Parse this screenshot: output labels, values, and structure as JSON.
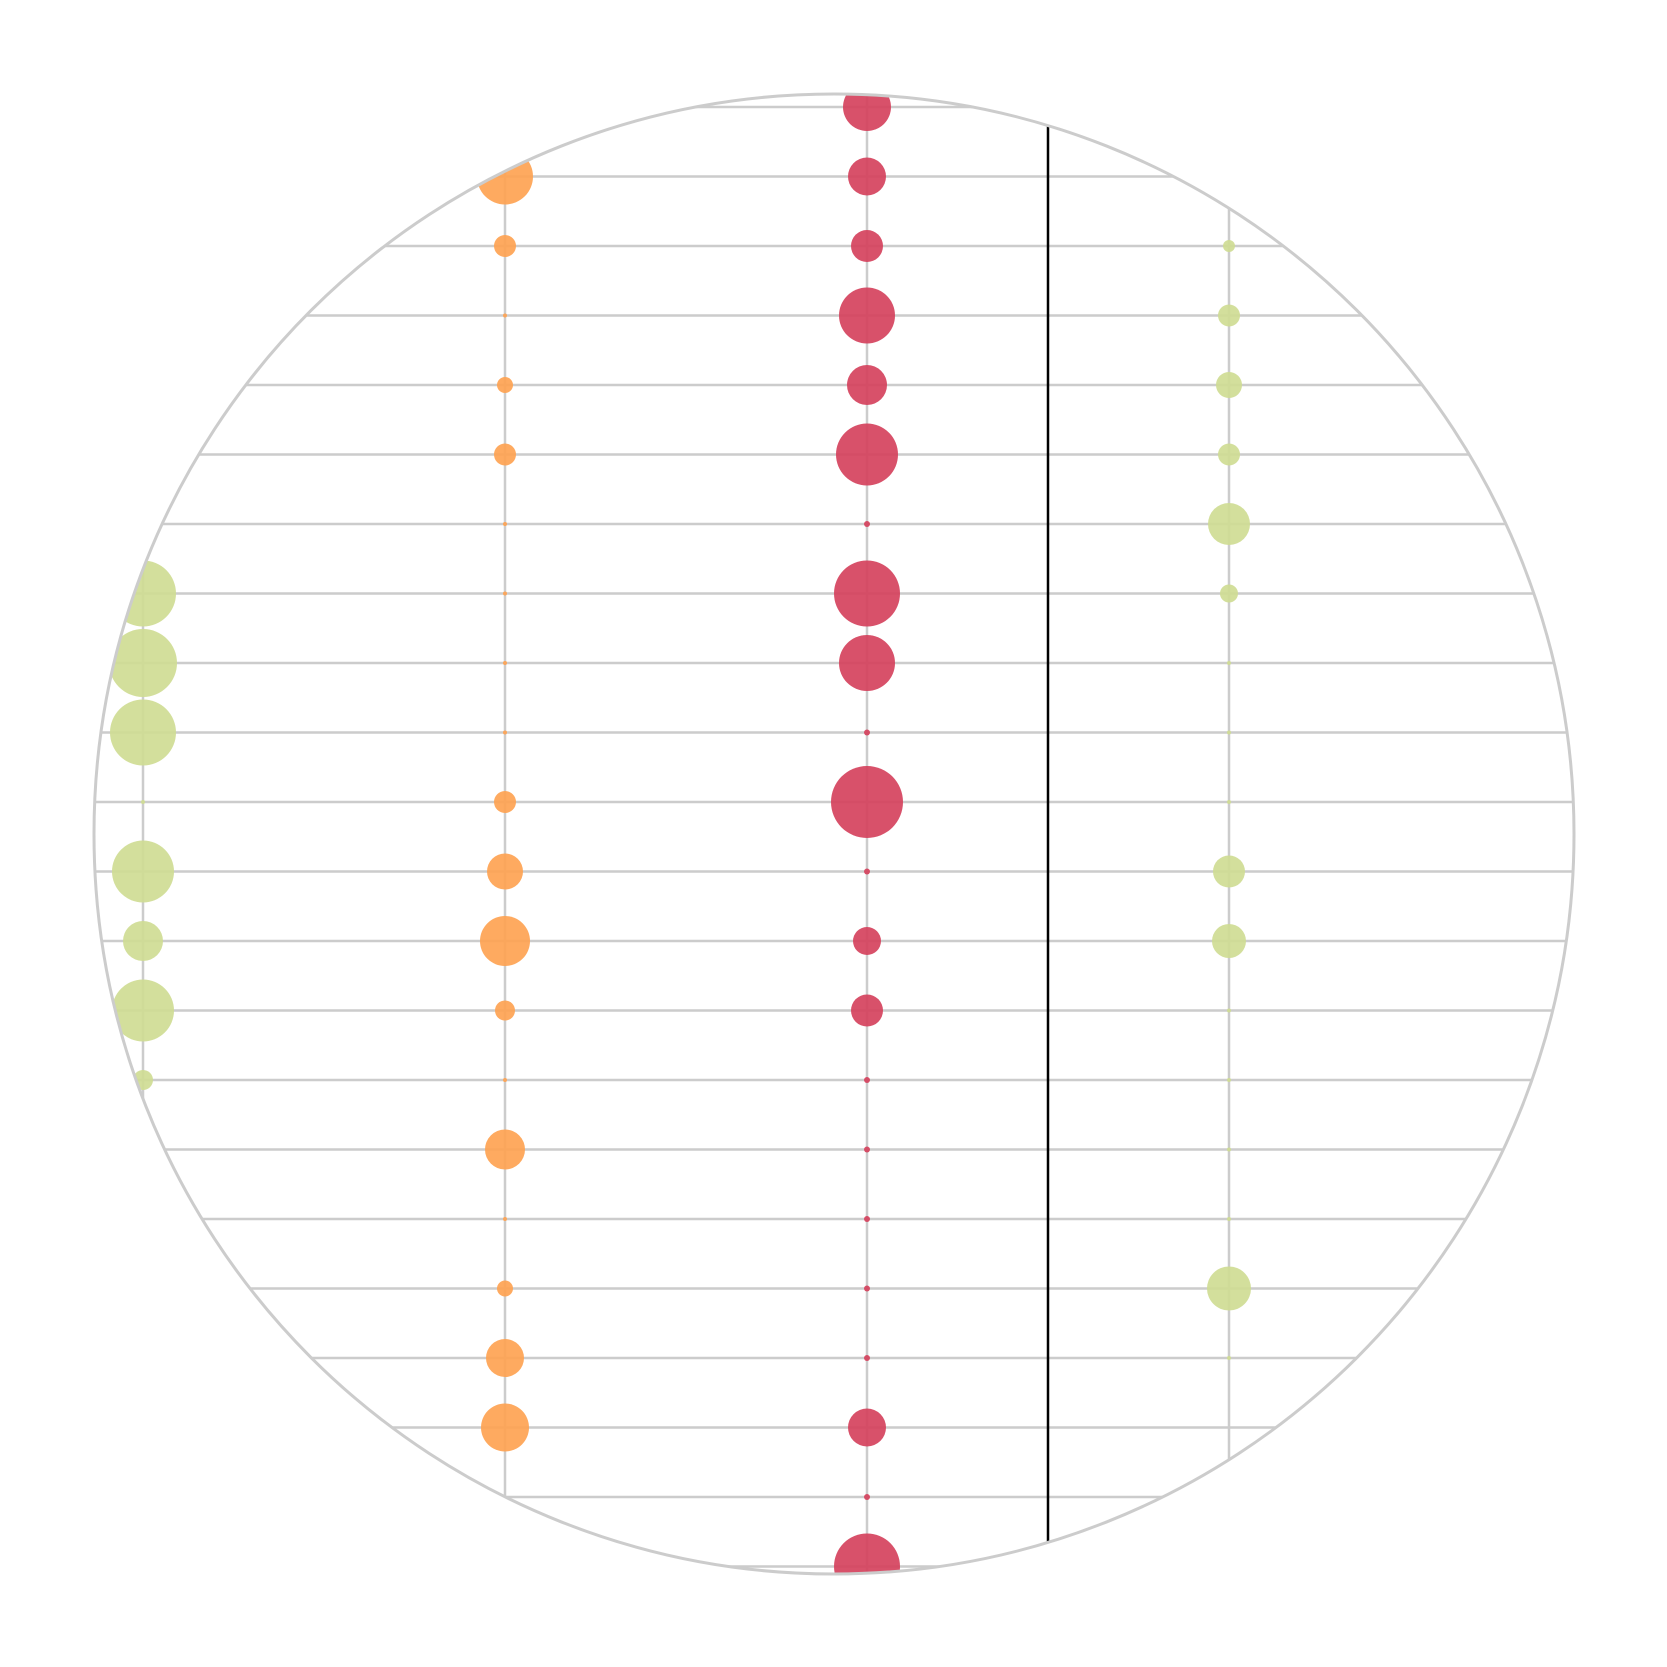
{
  "chart_data": {
    "type": "scatter",
    "title": "",
    "xlabel": "",
    "ylabel": "",
    "grid": true,
    "legend": "none",
    "columns": [
      0,
      1,
      2,
      3
    ],
    "rows": 22,
    "reference_line_x": 2.5,
    "series": [
      {
        "column": 0,
        "color": "#cfdc94",
        "sizes": [
          0,
          0,
          0,
          0,
          0,
          0,
          0,
          33,
          34,
          33,
          2,
          31,
          20,
          31,
          10,
          0,
          0,
          0,
          0,
          0,
          0,
          0
        ]
      },
      {
        "column": 1,
        "color": "#fea352",
        "sizes": [
          0,
          28,
          11,
          2,
          8,
          11,
          2,
          2,
          2,
          2,
          11,
          18,
          25,
          10,
          2,
          20,
          2,
          8,
          19,
          24,
          0,
          0
        ]
      },
      {
        "column": 2,
        "color": "#d5425d",
        "sizes": [
          24,
          19,
          16,
          28,
          20,
          31,
          3,
          33,
          28,
          3,
          36,
          3,
          14,
          16,
          3,
          3,
          3,
          3,
          3,
          19,
          3,
          33
        ]
      },
      {
        "column": 3,
        "color": "#cfdc94",
        "sizes": [
          0,
          0,
          6,
          11,
          13,
          11,
          21,
          9,
          2,
          2,
          2,
          16,
          17,
          2,
          2,
          2,
          2,
          22,
          2,
          0,
          0,
          0
        ]
      }
    ],
    "frame_color": "#cccccc",
    "grid_color": "#cccccc",
    "reference_line_color": "#000000"
  }
}
